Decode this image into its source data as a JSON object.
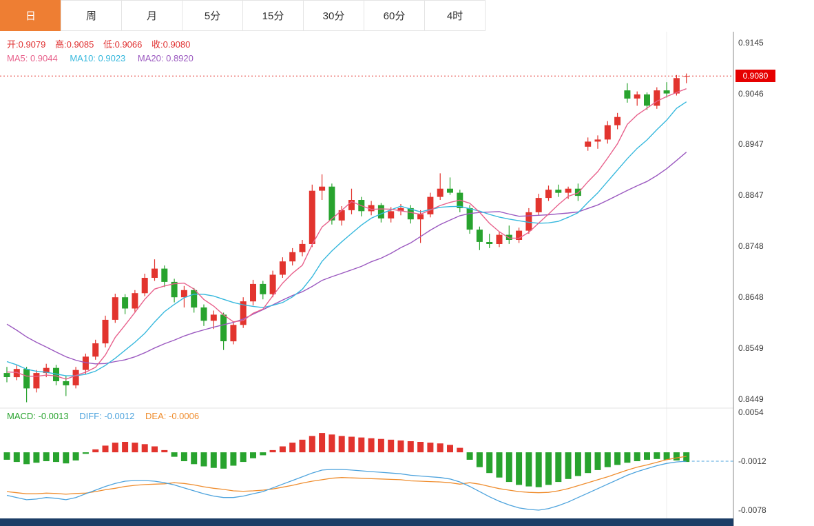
{
  "tabs": [
    {
      "label": "日",
      "active": true
    },
    {
      "label": "周",
      "active": false
    },
    {
      "label": "月",
      "active": false
    },
    {
      "label": "5分",
      "active": false
    },
    {
      "label": "15分",
      "active": false
    },
    {
      "label": "30分",
      "active": false
    },
    {
      "label": "60分",
      "active": false
    },
    {
      "label": "4时",
      "active": false
    }
  ],
  "main_legend": {
    "ohlc": [
      "开:0.9079",
      "高:0.9085",
      "低:0.9066",
      "收:0.9080"
    ],
    "ohlc_color": "#e03131",
    "ma": [
      {
        "text": "MA5: 0.9044",
        "color": "#e8618c"
      },
      {
        "text": "MA10: 0.9023",
        "color": "#36b8dd"
      },
      {
        "text": "MA20: 0.8920",
        "color": "#9b59c0"
      }
    ]
  },
  "macd_legend": [
    {
      "text": "MACD: -0.0013",
      "color": "#28a32e"
    },
    {
      "text": "DIFF: -0.0012",
      "color": "#4da3dd"
    },
    {
      "text": "DEA: -0.0006",
      "color": "#ef8d2e"
    }
  ],
  "chart_data": {
    "type": "candlestick",
    "description": "Daily candlestick chart with MA5/MA10/MA20 overlays, current-price marker line at 0.9080, and MACD sub-panel (red = up, green = down)",
    "ohlc_current": {
      "open": 0.9079,
      "high": 0.9085,
      "low": 0.9066,
      "close": 0.908
    },
    "ma_values": {
      "MA5": 0.9044,
      "MA10": 0.9023,
      "MA20": 0.892
    },
    "current_price": 0.908,
    "y_axis": {
      "min": 0.8449,
      "max": 0.9145,
      "ticks": [
        0.9145,
        0.9046,
        0.8947,
        0.8847,
        0.8748,
        0.8648,
        0.8549,
        0.8449
      ]
    },
    "colors": {
      "up": "#e2342e",
      "down": "#28a32e",
      "ma5": "#e8618c",
      "ma10": "#36b8dd",
      "ma20": "#9b59c0",
      "diff": "#4da3dd",
      "dea": "#ef8d2e",
      "badge": "#e60000"
    },
    "lead_in_closes": [
      0.876,
      0.8745,
      0.873,
      0.8712,
      0.8695,
      0.8678,
      0.866,
      0.8642,
      0.8625,
      0.8608,
      0.859,
      0.8572,
      0.8556,
      0.854,
      0.8528,
      0.8518,
      0.8512,
      0.8506,
      0.8502,
      0.8498
    ],
    "candles": [
      [
        0.85,
        0.8512,
        0.8482,
        0.8492
      ],
      [
        0.8492,
        0.8515,
        0.8486,
        0.8508
      ],
      [
        0.8508,
        0.8512,
        0.8443,
        0.847
      ],
      [
        0.847,
        0.8506,
        0.8462,
        0.85
      ],
      [
        0.85,
        0.8518,
        0.8492,
        0.851
      ],
      [
        0.851,
        0.8516,
        0.8476,
        0.8484
      ],
      [
        0.8484,
        0.8494,
        0.8455,
        0.8476
      ],
      [
        0.8476,
        0.8512,
        0.847,
        0.8506
      ],
      [
        0.8506,
        0.8538,
        0.8498,
        0.8532
      ],
      [
        0.8532,
        0.8565,
        0.8526,
        0.8558
      ],
      [
        0.8558,
        0.8612,
        0.855,
        0.8604
      ],
      [
        0.8604,
        0.8655,
        0.8598,
        0.8648
      ],
      [
        0.8648,
        0.8654,
        0.8615,
        0.8626
      ],
      [
        0.8626,
        0.8662,
        0.862,
        0.8656
      ],
      [
        0.8656,
        0.8694,
        0.865,
        0.8686
      ],
      [
        0.8686,
        0.8722,
        0.868,
        0.8704
      ],
      [
        0.8704,
        0.871,
        0.8668,
        0.8678
      ],
      [
        0.8678,
        0.8684,
        0.8638,
        0.8648
      ],
      [
        0.8648,
        0.867,
        0.8628,
        0.8662
      ],
      [
        0.8662,
        0.8666,
        0.8618,
        0.8628
      ],
      [
        0.8628,
        0.8634,
        0.8592,
        0.8602
      ],
      [
        0.8602,
        0.8622,
        0.8586,
        0.8614
      ],
      [
        0.8614,
        0.8618,
        0.8545,
        0.8562
      ],
      [
        0.8562,
        0.86,
        0.8556,
        0.8594
      ],
      [
        0.8594,
        0.8648,
        0.8588,
        0.864
      ],
      [
        0.864,
        0.8682,
        0.8632,
        0.8674
      ],
      [
        0.8674,
        0.868,
        0.8644,
        0.8654
      ],
      [
        0.8654,
        0.87,
        0.8648,
        0.8692
      ],
      [
        0.8692,
        0.8726,
        0.8686,
        0.8718
      ],
      [
        0.8718,
        0.8744,
        0.871,
        0.8736
      ],
      [
        0.8736,
        0.876,
        0.8728,
        0.8752
      ],
      [
        0.8752,
        0.8868,
        0.8746,
        0.8856
      ],
      [
        0.8856,
        0.8888,
        0.8838,
        0.8864
      ],
      [
        0.8864,
        0.887,
        0.879,
        0.8798
      ],
      [
        0.8798,
        0.8826,
        0.8788,
        0.8818
      ],
      [
        0.8818,
        0.886,
        0.881,
        0.8838
      ],
      [
        0.8838,
        0.8844,
        0.8806,
        0.8816
      ],
      [
        0.8816,
        0.8836,
        0.8808,
        0.8828
      ],
      [
        0.8828,
        0.8832,
        0.8794,
        0.8802
      ],
      [
        0.8802,
        0.8824,
        0.8794,
        0.8816
      ],
      [
        0.8816,
        0.883,
        0.8808,
        0.8822
      ],
      [
        0.8822,
        0.8828,
        0.8792,
        0.88
      ],
      [
        0.88,
        0.8818,
        0.8754,
        0.881
      ],
      [
        0.881,
        0.8852,
        0.8804,
        0.8844
      ],
      [
        0.8844,
        0.889,
        0.8838,
        0.886
      ],
      [
        0.886,
        0.8882,
        0.8848,
        0.8852
      ],
      [
        0.8852,
        0.8858,
        0.8814,
        0.8822
      ],
      [
        0.8822,
        0.8828,
        0.8772,
        0.878
      ],
      [
        0.878,
        0.8786,
        0.874,
        0.8756
      ],
      [
        0.8756,
        0.8772,
        0.8744,
        0.8752
      ],
      [
        0.8752,
        0.8776,
        0.8746,
        0.877
      ],
      [
        0.877,
        0.8788,
        0.8752,
        0.876
      ],
      [
        0.876,
        0.8784,
        0.8754,
        0.8778
      ],
      [
        0.8778,
        0.8822,
        0.8772,
        0.8814
      ],
      [
        0.8814,
        0.885,
        0.8808,
        0.8842
      ],
      [
        0.8842,
        0.8866,
        0.8836,
        0.8858
      ],
      [
        0.8858,
        0.8868,
        0.8844,
        0.8852
      ],
      [
        0.8852,
        0.8864,
        0.884,
        0.886
      ],
      [
        0.886,
        0.887,
        0.8836,
        0.8846
      ],
      [
        0.8942,
        0.896,
        0.8934,
        0.8952
      ],
      [
        0.8952,
        0.8964,
        0.8938,
        0.8956
      ],
      [
        0.8956,
        0.8992,
        0.8948,
        0.8984
      ],
      [
        0.8984,
        0.9008,
        0.8976,
        0.9
      ],
      [
        0.9052,
        0.9066,
        0.9028,
        0.9036
      ],
      [
        0.9036,
        0.905,
        0.9022,
        0.9044
      ],
      [
        0.9044,
        0.9048,
        0.9014,
        0.9022
      ],
      [
        0.9022,
        0.9058,
        0.9016,
        0.9052
      ],
      [
        0.9052,
        0.9068,
        0.9038,
        0.9046
      ],
      [
        0.9046,
        0.9082,
        0.9042,
        0.9076
      ],
      [
        0.9079,
        0.9085,
        0.9066,
        0.908
      ]
    ],
    "macd": {
      "y_max": 0.0054,
      "y_min": -0.0078,
      "ticks": [
        0.0054,
        -0.0012,
        -0.0078
      ],
      "values": {
        "MACD": -0.0013,
        "DIFF": -0.0012,
        "DEA": -0.0006
      },
      "hist": [
        -0.001,
        -0.0013,
        -0.0016,
        -0.0014,
        -0.0012,
        -0.0013,
        -0.0015,
        -0.0011,
        -0.0002,
        0.0004,
        0.0009,
        0.0013,
        0.0014,
        0.0013,
        0.0011,
        0.0008,
        0.0003,
        -0.0006,
        -0.0012,
        -0.0016,
        -0.0019,
        -0.0021,
        -0.0022,
        -0.0018,
        -0.0013,
        -0.0008,
        -0.0004,
        0.0003,
        0.0008,
        0.0013,
        0.0017,
        0.0022,
        0.0026,
        0.0024,
        0.0022,
        0.0021,
        0.002,
        0.0019,
        0.0018,
        0.0017,
        0.0016,
        0.0015,
        0.0014,
        0.0013,
        0.0012,
        0.001,
        0.0006,
        -0.001,
        -0.002,
        -0.0028,
        -0.0034,
        -0.004,
        -0.0044,
        -0.0046,
        -0.0047,
        -0.0044,
        -0.004,
        -0.0036,
        -0.0032,
        -0.0028,
        -0.0024,
        -0.002,
        -0.0017,
        -0.0014,
        -0.0012,
        -0.001,
        -0.0009,
        -0.001,
        -0.0011,
        -0.0013
      ],
      "diff": [
        -0.0058,
        -0.0061,
        -0.0064,
        -0.0063,
        -0.0061,
        -0.0062,
        -0.0064,
        -0.0061,
        -0.0056,
        -0.0051,
        -0.0046,
        -0.0042,
        -0.0039,
        -0.0038,
        -0.0038,
        -0.0039,
        -0.0041,
        -0.0044,
        -0.0048,
        -0.0052,
        -0.0056,
        -0.0059,
        -0.0061,
        -0.0061,
        -0.0059,
        -0.0056,
        -0.0053,
        -0.0048,
        -0.0043,
        -0.0038,
        -0.0033,
        -0.0028,
        -0.0024,
        -0.0023,
        -0.0023,
        -0.0024,
        -0.0025,
        -0.0026,
        -0.0027,
        -0.0028,
        -0.0029,
        -0.0031,
        -0.0032,
        -0.0033,
        -0.0034,
        -0.0036,
        -0.004,
        -0.0046,
        -0.0053,
        -0.006,
        -0.0066,
        -0.0071,
        -0.0075,
        -0.0077,
        -0.0078,
        -0.0076,
        -0.0072,
        -0.0067,
        -0.0061,
        -0.0055,
        -0.0049,
        -0.0043,
        -0.0037,
        -0.0031,
        -0.0026,
        -0.0022,
        -0.0018,
        -0.0015,
        -0.0013,
        -0.0012
      ]
    }
  }
}
